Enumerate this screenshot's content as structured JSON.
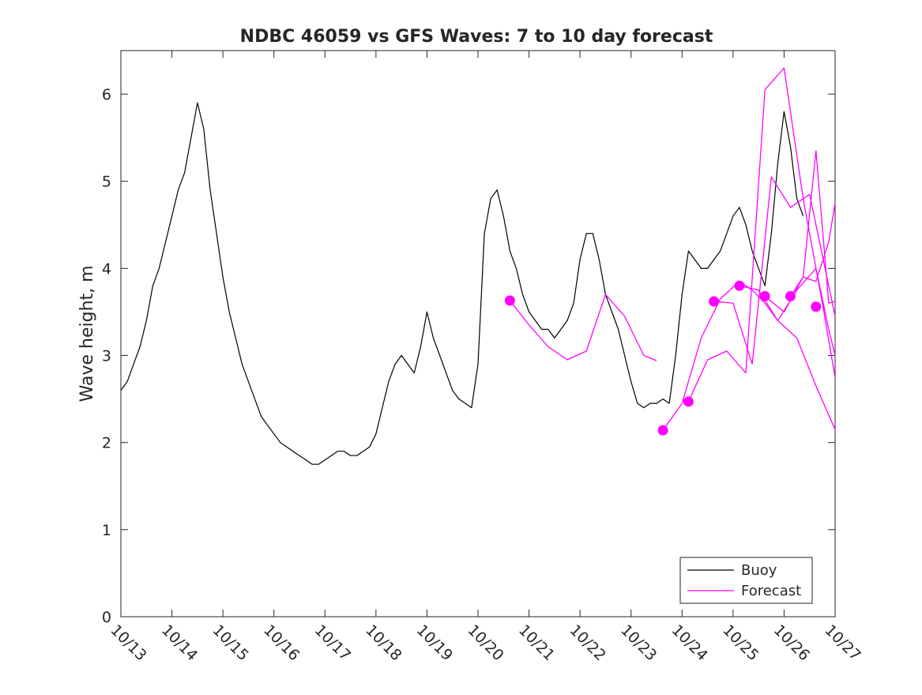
{
  "chart_data": {
    "type": "line",
    "title": "NDBC 46059 vs GFS Waves: 7 to 10 day forecast",
    "xlabel": "",
    "ylabel": "Wave height, m",
    "x_is_date": true,
    "xlim": [
      "10/13",
      "10/27"
    ],
    "ylim": [
      0,
      6.5
    ],
    "x_ticks": [
      "10/13",
      "10/14",
      "10/15",
      "10/16",
      "10/17",
      "10/18",
      "10/19",
      "10/20",
      "10/21",
      "10/22",
      "10/23",
      "10/24",
      "10/25",
      "10/26",
      "10/27"
    ],
    "y_ticks": [
      0,
      1,
      2,
      3,
      4,
      5,
      6
    ],
    "grid": false,
    "legend": {
      "placement": "bottom-right",
      "entries": [
        "Buoy",
        "Forecast"
      ]
    },
    "colors": {
      "buoy": "#000000",
      "forecast": "#ff00ff",
      "axis": "#262626"
    },
    "series": [
      {
        "name": "Buoy",
        "x": [
          "10/13 00:00",
          "10/13 03:00",
          "10/13 06:00",
          "10/13 09:00",
          "10/13 12:00",
          "10/13 15:00",
          "10/13 18:00",
          "10/13 21:00",
          "10/14 00:00",
          "10/14 03:00",
          "10/14 06:00",
          "10/14 09:00",
          "10/14 12:00",
          "10/14 15:00",
          "10/14 18:00",
          "10/14 21:00",
          "10/15 00:00",
          "10/15 03:00",
          "10/15 06:00",
          "10/15 09:00",
          "10/15 12:00",
          "10/15 15:00",
          "10/15 18:00",
          "10/15 21:00",
          "10/16 00:00",
          "10/16 03:00",
          "10/16 06:00",
          "10/16 09:00",
          "10/16 12:00",
          "10/16 15:00",
          "10/16 18:00",
          "10/16 21:00",
          "10/17 00:00",
          "10/17 03:00",
          "10/17 06:00",
          "10/17 09:00",
          "10/17 12:00",
          "10/17 15:00",
          "10/17 18:00",
          "10/17 21:00",
          "10/18 00:00",
          "10/18 03:00",
          "10/18 06:00",
          "10/18 09:00",
          "10/18 12:00",
          "10/18 15:00",
          "10/18 18:00",
          "10/18 21:00",
          "10/19 00:00",
          "10/19 03:00",
          "10/19 06:00",
          "10/19 09:00",
          "10/19 12:00",
          "10/19 15:00",
          "10/19 18:00",
          "10/19 21:00",
          "10/20 00:00",
          "10/20 03:00",
          "10/20 06:00",
          "10/20 09:00",
          "10/20 12:00",
          "10/20 15:00",
          "10/20 18:00",
          "10/20 21:00",
          "10/21 00:00",
          "10/21 03:00",
          "10/21 06:00",
          "10/21 09:00",
          "10/21 12:00",
          "10/21 15:00",
          "10/21 18:00",
          "10/21 21:00",
          "10/22 00:00",
          "10/22 03:00",
          "10/22 06:00",
          "10/22 09:00",
          "10/22 12:00",
          "10/22 15:00",
          "10/22 18:00",
          "10/22 21:00",
          "10/23 00:00",
          "10/23 03:00",
          "10/23 06:00",
          "10/23 09:00",
          "10/23 12:00",
          "10/23 15:00",
          "10/23 18:00",
          "10/23 21:00",
          "10/24 00:00",
          "10/24 03:00",
          "10/24 06:00",
          "10/24 09:00",
          "10/24 12:00",
          "10/24 15:00",
          "10/24 18:00",
          "10/24 21:00",
          "10/25 00:00",
          "10/25 03:00",
          "10/25 06:00",
          "10/25 09:00",
          "10/25 12:00",
          "10/25 15:00",
          "10/25 18:00",
          "10/25 21:00",
          "10/26 00:00",
          "10/26 03:00",
          "10/26 06:00",
          "10/26 09:00"
        ],
        "values": [
          2.6,
          2.7,
          2.9,
          3.1,
          3.4,
          3.8,
          4.0,
          4.3,
          4.6,
          4.9,
          5.1,
          5.5,
          5.9,
          5.6,
          4.9,
          4.4,
          3.9,
          3.5,
          3.2,
          2.9,
          2.7,
          2.5,
          2.3,
          2.2,
          2.1,
          2.0,
          1.95,
          1.9,
          1.85,
          1.8,
          1.75,
          1.75,
          1.8,
          1.85,
          1.9,
          1.9,
          1.85,
          1.85,
          1.9,
          1.95,
          2.1,
          2.4,
          2.7,
          2.9,
          3.0,
          2.9,
          2.8,
          3.1,
          3.5,
          3.2,
          3.0,
          2.8,
          2.6,
          2.5,
          2.45,
          2.4,
          2.9,
          4.4,
          4.8,
          4.9,
          4.6,
          4.2,
          4.0,
          3.7,
          3.5,
          3.4,
          3.3,
          3.3,
          3.2,
          3.3,
          3.4,
          3.6,
          4.1,
          4.4,
          4.4,
          4.1,
          3.7,
          3.5,
          3.3,
          3.0,
          2.7,
          2.45,
          2.4,
          2.45,
          2.45,
          2.5,
          2.45,
          3.0,
          3.7,
          4.2,
          4.1,
          4.0,
          4.0,
          4.1,
          4.2,
          4.4,
          4.6,
          4.7,
          4.5,
          4.2,
          4.0,
          3.8,
          4.4,
          5.2,
          5.8,
          5.4,
          4.8,
          4.6
        ]
      },
      {
        "name": "Forecast",
        "x": [
          "10/20 15:00",
          "10/21 00:00",
          "10/21 09:00",
          "10/21 18:00",
          "10/22 03:00",
          "10/22 12:00",
          "10/22 21:00",
          "10/23 06:00",
          "10/23 12:00"
        ],
        "values": [
          3.63,
          3.35,
          3.1,
          2.95,
          3.05,
          3.7,
          3.45,
          3.0,
          2.94
        ]
      },
      {
        "name": "",
        "x": [
          "10/23 15:00",
          "10/24 00:00",
          "10/24 09:00",
          "10/24 18:00",
          "10/25 03:00",
          "10/25 09:00",
          "10/25 15:00",
          "10/25 21:00",
          "10/26 06:00",
          "10/26 15:00",
          "10/27 00:00"
        ],
        "values": [
          2.14,
          2.45,
          3.2,
          3.65,
          3.85,
          3.75,
          3.6,
          3.4,
          3.2,
          2.65,
          2.15
        ]
      },
      {
        "name": "",
        "x": [
          "10/24 03:00",
          "10/24 12:00",
          "10/24 21:00",
          "10/25 06:00",
          "10/25 15:00",
          "10/26 00:00",
          "10/26 09:00",
          "10/26 18:00",
          "10/27 00:00"
        ],
        "values": [
          2.47,
          2.95,
          3.05,
          2.8,
          6.05,
          6.3,
          4.8,
          3.6,
          2.75
        ]
      },
      {
        "name": "",
        "x": [
          "10/24 15:00",
          "10/25 00:00",
          "10/25 09:00",
          "10/25 18:00",
          "10/26 03:00",
          "10/26 12:00",
          "10/26 21:00",
          "10/27 00:00"
        ],
        "values": [
          3.62,
          3.6,
          2.9,
          5.05,
          4.7,
          4.85,
          3.8,
          3.45
        ]
      },
      {
        "name": "",
        "x": [
          "10/25 03:00",
          "10/25 12:00",
          "10/25 21:00",
          "10/26 06:00",
          "10/26 15:00",
          "10/26 21:00",
          "10/27 00:00"
        ],
        "values": [
          3.8,
          3.75,
          3.4,
          3.75,
          4.0,
          3.3,
          3.0
        ]
      },
      {
        "name": "",
        "x": [
          "10/25 15:00",
          "10/26 00:00",
          "10/26 09:00",
          "10/26 15:00",
          "10/26 21:00",
          "10/27 00:00"
        ],
        "values": [
          3.68,
          3.5,
          3.9,
          3.85,
          4.3,
          4.75
        ]
      },
      {
        "name": "",
        "x": [
          "10/26 03:00",
          "10/26 09:00",
          "10/26 15:00",
          "10/26 21:00",
          "10/27 00:00"
        ],
        "values": [
          3.68,
          3.9,
          5.35,
          3.6,
          3.62
        ]
      }
    ],
    "forecast_start_points": {
      "x": [
        "10/20 15:00",
        "10/23 15:00",
        "10/24 03:00",
        "10/24 15:00",
        "10/25 03:00",
        "10/25 15:00",
        "10/26 03:00",
        "10/26 15:00"
      ],
      "values": [
        3.63,
        2.14,
        2.47,
        3.62,
        3.8,
        3.68,
        3.68,
        3.56
      ]
    }
  }
}
